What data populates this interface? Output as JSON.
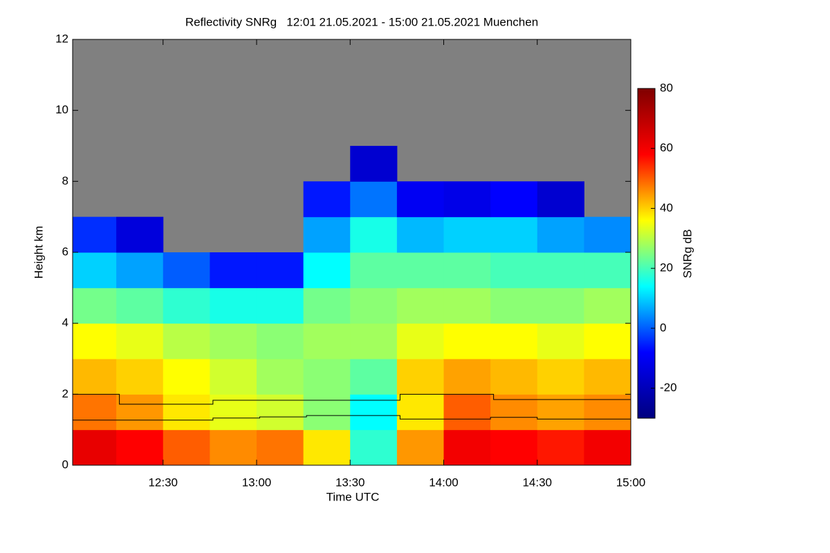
{
  "chart_data": {
    "type": "heatmap",
    "title": "Reflectivity SNRg   12:01 21.05.2021 - 15:00 21.05.2021 Muenchen",
    "x_label": "Time UTC",
    "y_label": "Height km",
    "xlim": [
      721,
      900
    ],
    "xticks": [
      {
        "value": 750,
        "label": "12:30"
      },
      {
        "value": 780,
        "label": "13:00"
      },
      {
        "value": 810,
        "label": "13:30"
      },
      {
        "value": 840,
        "label": "14:00"
      },
      {
        "value": 870,
        "label": "14:30"
      },
      {
        "value": 900,
        "label": "15:00"
      }
    ],
    "ylim": [
      0,
      12
    ],
    "yticks": [
      0,
      2,
      4,
      6,
      8,
      10,
      12
    ],
    "x_bins": [
      721,
      735,
      750,
      765,
      780,
      795,
      810,
      825,
      840,
      855,
      870,
      885,
      900
    ],
    "y_bins": [
      0,
      1,
      2,
      3,
      4,
      5,
      6,
      7,
      8,
      9
    ],
    "z": [
      [
        62,
        58,
        50,
        46,
        48,
        38,
        18,
        45,
        60,
        58,
        56,
        60
      ],
      [
        48,
        45,
        38,
        34,
        32,
        26,
        14,
        38,
        50,
        46,
        44,
        46
      ],
      [
        42,
        40,
        36,
        32,
        28,
        26,
        22,
        40,
        44,
        42,
        40,
        42
      ],
      [
        36,
        34,
        30,
        28,
        26,
        28,
        28,
        34,
        36,
        36,
        34,
        36
      ],
      [
        24,
        22,
        18,
        16,
        16,
        24,
        26,
        28,
        28,
        26,
        26,
        28
      ],
      [
        10,
        6,
        0,
        -6,
        -6,
        14,
        22,
        22,
        22,
        20,
        20,
        20
      ],
      [
        -4,
        -14,
        null,
        null,
        null,
        6,
        16,
        8,
        10,
        10,
        6,
        4
      ],
      [
        null,
        null,
        null,
        null,
        null,
        -6,
        2,
        -10,
        -12,
        -8,
        -16,
        null
      ],
      [
        null,
        null,
        null,
        null,
        null,
        null,
        -16,
        null,
        null,
        null,
        null,
        null
      ]
    ],
    "missing_color": "#808080",
    "colorscale": [
      "#00007f",
      "#0000ff",
      "#00ffff",
      "#ffff00",
      "#ff0000",
      "#7f0000"
    ],
    "clim": [
      -30,
      80
    ],
    "cticks": [
      -20,
      0,
      20,
      40,
      60,
      80
    ],
    "colorbar_label": "SNRg dB",
    "lines": [
      {
        "color": "#000000",
        "x": [
          721,
          736,
          736,
          766,
          766,
          826,
          826,
          856,
          856,
          900
        ],
        "values": [
          2,
          2,
          1.72,
          1.72,
          1.83,
          1.83,
          2,
          2,
          1.85,
          1.85
        ]
      },
      {
        "color": "#000000",
        "x": [
          721,
          766,
          766,
          781,
          781,
          796,
          796,
          826,
          826,
          855,
          855,
          870,
          870,
          900
        ],
        "values": [
          1.27,
          1.27,
          1.33,
          1.33,
          1.36,
          1.36,
          1.4,
          1.4,
          1.3,
          1.3,
          1.35,
          1.35,
          1.3,
          1.3
        ]
      }
    ]
  }
}
